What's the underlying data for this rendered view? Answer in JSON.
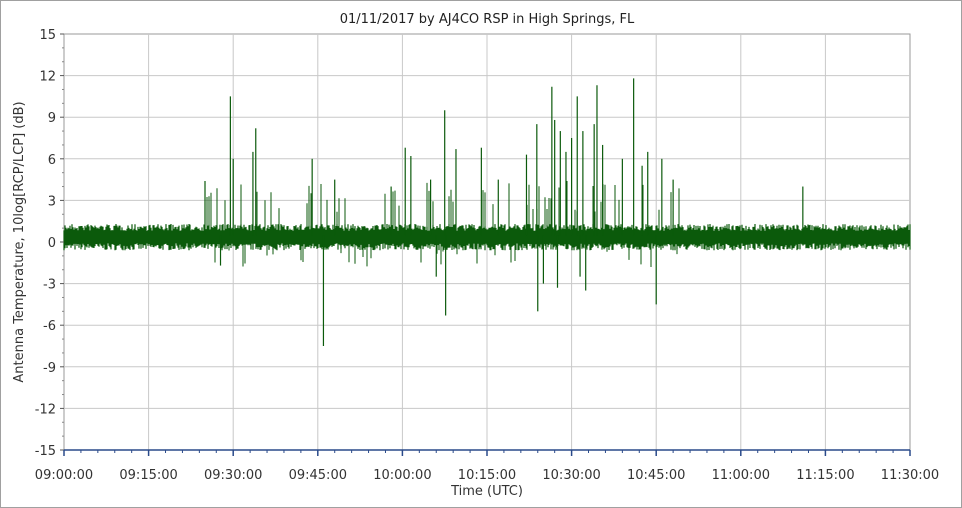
{
  "chart_data": {
    "type": "line",
    "title": "01/11/2017  by  AJ4CO RSP  in  High Springs, FL",
    "xlabel": "Time (UTC)",
    "ylabel": "Antenna Temperature, 10log[RCP/LCP] (dB)",
    "xlim": [
      "09:00:00",
      "11:30:00"
    ],
    "ylim": [
      -15,
      15
    ],
    "xticks": [
      "09:00:00",
      "09:15:00",
      "09:30:00",
      "09:45:00",
      "10:00:00",
      "10:15:00",
      "10:30:00",
      "10:45:00",
      "11:00:00",
      "11:15:00",
      "11:30:00"
    ],
    "yticks": [
      "15",
      "12",
      "9",
      "6",
      "3",
      "0",
      "-3",
      "-6",
      "-9",
      "-12",
      "-15"
    ],
    "grid": true,
    "series": [
      {
        "color": "#0b5a0b",
        "baseline": 0.5,
        "noise_band": [
          -0.6,
          1.3
        ],
        "spikes": [
          {
            "t": "09:25:00",
            "v": 4.4
          },
          {
            "t": "09:27:45",
            "v": -1.7
          },
          {
            "t": "09:29:30",
            "v": 10.5
          },
          {
            "t": "09:30:00",
            "v": 6.0
          },
          {
            "t": "09:34:00",
            "v": 8.2
          },
          {
            "t": "09:33:30",
            "v": 6.5
          },
          {
            "t": "09:44:00",
            "v": 6.0
          },
          {
            "t": "09:46:00",
            "v": -7.5
          },
          {
            "t": "09:48:00",
            "v": 4.5
          },
          {
            "t": "09:58:00",
            "v": 4.0
          },
          {
            "t": "10:00:30",
            "v": 6.8
          },
          {
            "t": "10:01:30",
            "v": 6.2
          },
          {
            "t": "10:05:00",
            "v": 4.5
          },
          {
            "t": "10:06:00",
            "v": -2.5
          },
          {
            "t": "10:07:30",
            "v": 9.5
          },
          {
            "t": "10:07:40",
            "v": -5.3
          },
          {
            "t": "10:09:30",
            "v": 6.7
          },
          {
            "t": "10:14:00",
            "v": 6.8
          },
          {
            "t": "10:17:00",
            "v": 4.5
          },
          {
            "t": "10:22:00",
            "v": 6.3
          },
          {
            "t": "10:23:50",
            "v": 8.5
          },
          {
            "t": "10:24:00",
            "v": -5.0
          },
          {
            "t": "10:25:00",
            "v": -3.0
          },
          {
            "t": "10:26:30",
            "v": 11.2
          },
          {
            "t": "10:27:00",
            "v": 8.8
          },
          {
            "t": "10:27:30",
            "v": -3.3
          },
          {
            "t": "10:28:00",
            "v": 8.0
          },
          {
            "t": "10:29:00",
            "v": 6.5
          },
          {
            "t": "10:30:00",
            "v": 7.5
          },
          {
            "t": "10:31:00",
            "v": 10.5
          },
          {
            "t": "10:31:30",
            "v": -2.5
          },
          {
            "t": "10:32:00",
            "v": 8.0
          },
          {
            "t": "10:32:30",
            "v": -3.5
          },
          {
            "t": "10:34:00",
            "v": 8.5
          },
          {
            "t": "10:34:30",
            "v": 11.3
          },
          {
            "t": "10:35:30",
            "v": 7.0
          },
          {
            "t": "10:39:00",
            "v": 6.0
          },
          {
            "t": "10:41:00",
            "v": 11.8
          },
          {
            "t": "10:42:30",
            "v": 5.5
          },
          {
            "t": "10:43:30",
            "v": 6.5
          },
          {
            "t": "10:45:00",
            "v": -4.5
          },
          {
            "t": "10:46:00",
            "v": 6.0
          },
          {
            "t": "10:48:00",
            "v": 4.5
          },
          {
            "t": "11:11:00",
            "v": 4.0
          }
        ]
      }
    ]
  }
}
